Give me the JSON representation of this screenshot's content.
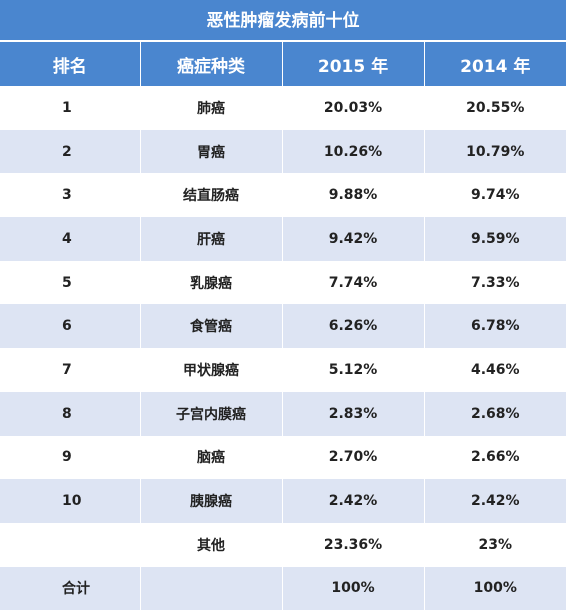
{
  "title": "恶性肿瘤发病前十位",
  "header": {
    "rank": "排名",
    "type": "癌症种类",
    "year2015": "2015 年",
    "year2014": "2014 年"
  },
  "rows": [
    {
      "rank": "1",
      "name": "肺癌",
      "v2015": "20.03%",
      "v2014": "20.55%"
    },
    {
      "rank": "2",
      "name": "胃癌",
      "v2015": "10.26%",
      "v2014": "10.79%"
    },
    {
      "rank": "3",
      "name": "结直肠癌",
      "v2015": "9.88%",
      "v2014": "9.74%"
    },
    {
      "rank": "4",
      "name": "肝癌",
      "v2015": "9.42%",
      "v2014": "9.59%"
    },
    {
      "rank": "5",
      "name": "乳腺癌",
      "v2015": "7.74%",
      "v2014": "7.33%"
    },
    {
      "rank": "6",
      "name": "食管癌",
      "v2015": "6.26%",
      "v2014": "6.78%"
    },
    {
      "rank": "7",
      "name": "甲状腺癌",
      "v2015": "5.12%",
      "v2014": "4.46%"
    },
    {
      "rank": "8",
      "name": "子宫内膜癌",
      "v2015": "2.83%",
      "v2014": "2.68%"
    },
    {
      "rank": "9",
      "name": "脑癌",
      "v2015": "2.70%",
      "v2014": "2.66%"
    },
    {
      "rank": "10",
      "name": "胰腺癌",
      "v2015": "2.42%",
      "v2014": "2.42%"
    },
    {
      "rank": "",
      "name": "其他",
      "v2015": "23.36%",
      "v2014": "23%"
    },
    {
      "rank": "合计",
      "name": "",
      "v2015": "100%",
      "v2014": "100%"
    }
  ],
  "colors": {
    "header_bg": "#4a86cf",
    "stripe_bg": "#dde4f3"
  }
}
